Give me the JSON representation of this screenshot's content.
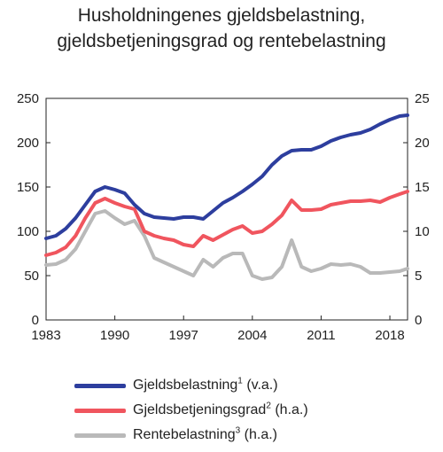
{
  "title_lines": [
    "Husholdningenes gjeldsbelastning,",
    "gjeldsbetjeningsgrad og rentebelastning"
  ],
  "chart_data": {
    "type": "line",
    "title": "Husholdningenes gjeldsbelastning, gjeldsbetjeningsgrad og rentebelastning",
    "x_tick_labels": [
      "1983",
      "1990",
      "1997",
      "2004",
      "2011",
      "2018"
    ],
    "xlim": [
      1983,
      2019.8
    ],
    "y_left": {
      "ylim": [
        0,
        250
      ],
      "ticks": [
        "0",
        "50",
        "100",
        "150",
        "200",
        "250"
      ]
    },
    "y_right": {
      "ylim": [
        0,
        25
      ],
      "ticks": [
        "0",
        "5",
        "10",
        "15",
        "20",
        "25"
      ]
    },
    "grid": false,
    "legend_position": "bottom",
    "series": [
      {
        "name": "Gjeldsbelastning",
        "footnote": "1",
        "axis_note": "(v.a.)",
        "axis": "left",
        "color": "#2d3e9e",
        "x": [
          1983,
          1984,
          1985,
          1986,
          1987,
          1988,
          1989,
          1990,
          1991,
          1992,
          1993,
          1994,
          1995,
          1996,
          1997,
          1998,
          1999,
          2000,
          2001,
          2002,
          2003,
          2004,
          2005,
          2006,
          2007,
          2008,
          2009,
          2010,
          2011,
          2012,
          2013,
          2014,
          2015,
          2016,
          2017,
          2018,
          2019,
          2019.8
        ],
        "values": [
          92,
          95,
          103,
          115,
          130,
          145,
          150,
          147,
          143,
          130,
          120,
          116,
          115,
          114,
          116,
          116,
          114,
          123,
          132,
          138,
          145,
          153,
          162,
          175,
          185,
          191,
          192,
          192,
          196,
          202,
          206,
          209,
          211,
          215,
          221,
          226,
          230,
          231
        ]
      },
      {
        "name": "Gjeldsbetjeningsgrad",
        "footnote": "2",
        "axis_note": "(h.a.)",
        "axis": "right",
        "color": "#f0555e",
        "x": [
          1983,
          1984,
          1985,
          1986,
          1987,
          1988,
          1989,
          1990,
          1991,
          1992,
          1993,
          1994,
          1995,
          1996,
          1997,
          1998,
          1999,
          2000,
          2001,
          2002,
          2003,
          2004,
          2005,
          2006,
          2007,
          2008,
          2009,
          2010,
          2011,
          2012,
          2013,
          2014,
          2015,
          2016,
          2017,
          2018,
          2019,
          2019.8
        ],
        "values": [
          7.3,
          7.6,
          8.2,
          9.5,
          11.5,
          13.2,
          13.7,
          13.2,
          12.8,
          12.5,
          10.0,
          9.5,
          9.2,
          9.0,
          8.5,
          8.3,
          9.5,
          9.0,
          9.6,
          10.2,
          10.6,
          9.8,
          10.0,
          10.8,
          11.8,
          13.5,
          12.4,
          12.4,
          12.5,
          13.0,
          13.2,
          13.4,
          13.4,
          13.5,
          13.3,
          13.8,
          14.2,
          14.5
        ]
      },
      {
        "name": "Rentebelastning",
        "footnote": "3",
        "axis_note": "(h.a.)",
        "axis": "right",
        "color": "#b9b9b9",
        "x": [
          1983,
          1984,
          1985,
          1986,
          1987,
          1988,
          1989,
          1990,
          1991,
          1992,
          1993,
          1994,
          1995,
          1996,
          1997,
          1998,
          1999,
          2000,
          2001,
          2002,
          2003,
          2004,
          2005,
          2006,
          2007,
          2008,
          2009,
          2010,
          2011,
          2012,
          2013,
          2014,
          2015,
          2016,
          2017,
          2018,
          2019,
          2019.8
        ],
        "values": [
          6.2,
          6.3,
          6.8,
          8.0,
          10.0,
          12.0,
          12.3,
          11.5,
          10.8,
          11.2,
          9.5,
          7.0,
          6.5,
          6.0,
          5.5,
          5.0,
          6.8,
          6.0,
          7.0,
          7.5,
          7.5,
          5.0,
          4.6,
          4.8,
          6.0,
          9.0,
          6.0,
          5.5,
          5.8,
          6.3,
          6.2,
          6.3,
          6.0,
          5.3,
          5.3,
          5.4,
          5.5,
          5.8
        ]
      }
    ]
  }
}
